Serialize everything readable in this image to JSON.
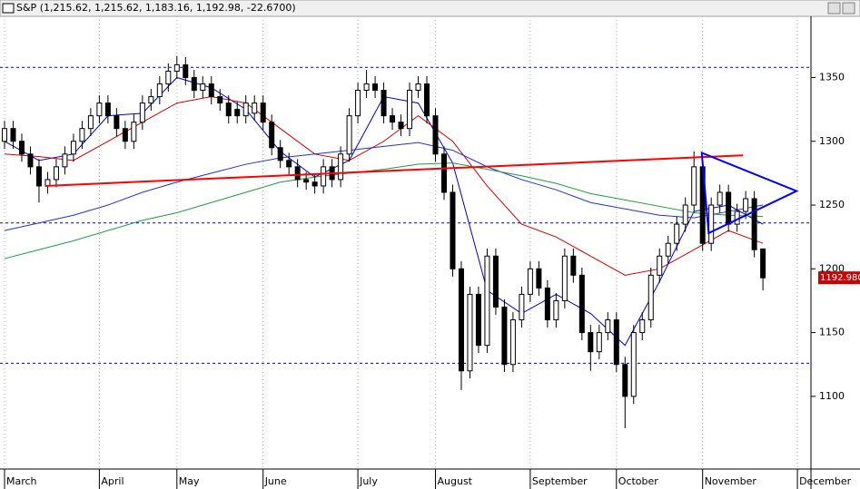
{
  "chart_data": {
    "type": "candlestick",
    "title": "S&P (1,215.62, 1,215.62, 1,183.16, 1,192.98, -22.6700)",
    "categories": [
      "March",
      null,
      null,
      null,
      null,
      null,
      null,
      null,
      null,
      null,
      null,
      "April",
      null,
      null,
      null,
      null,
      null,
      null,
      null,
      null,
      "May",
      null,
      null,
      null,
      null,
      null,
      null,
      null,
      null,
      null,
      "June",
      null,
      null,
      null,
      null,
      null,
      null,
      null,
      null,
      null,
      null,
      "July",
      null,
      null,
      null,
      null,
      null,
      null,
      null,
      null,
      "August",
      null,
      null,
      null,
      null,
      null,
      null,
      null,
      null,
      null,
      null,
      "September",
      null,
      null,
      null,
      null,
      null,
      null,
      null,
      null,
      null,
      "October",
      null,
      null,
      null,
      null,
      null,
      null,
      null,
      null,
      null,
      "November",
      null,
      null,
      null,
      null,
      null,
      null,
      null,
      null,
      null,
      null,
      "December"
    ],
    "open": [
      1300,
      1310,
      1300,
      1290,
      1280,
      1265,
      1270,
      1280,
      1290,
      1300,
      1310,
      1320,
      1330,
      1320,
      1310,
      1300,
      1315,
      1330,
      1335,
      1345,
      1355,
      1360,
      1350,
      1340,
      1345,
      1335,
      1330,
      1325,
      1320,
      1322,
      1330,
      1315,
      1295,
      1285,
      1280,
      1270,
      1268,
      1265,
      1280,
      1270,
      1290,
      1320,
      1340,
      1345,
      1340,
      1320,
      1315,
      1310,
      1340,
      1345,
      1320,
      1290,
      1260,
      1200,
      1120,
      1180,
      1140,
      1210,
      1170,
      1125,
      1160,
      1180,
      1200,
      1185,
      1160,
      1175,
      1210,
      1195,
      1150,
      1135,
      1150,
      1160,
      1125,
      1100,
      1150,
      1160,
      1195,
      1210,
      1220,
      1235,
      1250,
      1280,
      1220,
      1250,
      1260,
      1235,
      1245,
      1255,
      1215.62,
      null,
      null,
      null,
      null
    ],
    "high": [
      1316,
      1316,
      1306,
      1296,
      1286,
      1276,
      1286,
      1296,
      1306,
      1316,
      1326,
      1336,
      1336,
      1326,
      1316,
      1321,
      1336,
      1341,
      1351,
      1361,
      1367,
      1366,
      1356,
      1351,
      1351,
      1341,
      1336,
      1331,
      1336,
      1336,
      1336,
      1321,
      1301,
      1291,
      1286,
      1276,
      1274,
      1286,
      1286,
      1296,
      1326,
      1346,
      1356,
      1351,
      1346,
      1326,
      1321,
      1346,
      1351,
      1351,
      1326,
      1296,
      1266,
      1206,
      1186,
      1186,
      1216,
      1216,
      1176,
      1166,
      1186,
      1206,
      1206,
      1191,
      1181,
      1216,
      1216,
      1201,
      1156,
      1156,
      1166,
      1166,
      1131,
      1156,
      1166,
      1201,
      1216,
      1226,
      1241,
      1256,
      1292,
      1286,
      1256,
      1266,
      1266,
      1251,
      1261,
      1261,
      1215.62,
      null,
      null,
      null,
      null
    ],
    "low": [
      1294,
      1294,
      1284,
      1274,
      1252,
      1259,
      1264,
      1274,
      1284,
      1294,
      1304,
      1314,
      1314,
      1304,
      1294,
      1294,
      1309,
      1324,
      1329,
      1339,
      1349,
      1344,
      1334,
      1334,
      1329,
      1324,
      1314,
      1314,
      1314,
      1316,
      1309,
      1289,
      1279,
      1274,
      1264,
      1262,
      1259,
      1259,
      1264,
      1264,
      1284,
      1314,
      1334,
      1334,
      1314,
      1309,
      1304,
      1304,
      1334,
      1314,
      1284,
      1254,
      1194,
      1105,
      1114,
      1134,
      1134,
      1164,
      1119,
      1119,
      1154,
      1174,
      1179,
      1154,
      1154,
      1169,
      1189,
      1144,
      1120,
      1129,
      1144,
      1119,
      1075,
      1094,
      1144,
      1154,
      1189,
      1204,
      1214,
      1229,
      1244,
      1214,
      1214,
      1244,
      1229,
      1229,
      1239,
      1209,
      1183.16,
      null,
      null,
      null,
      null
    ],
    "close": [
      1310,
      1300,
      1290,
      1280,
      1265,
      1270,
      1280,
      1290,
      1300,
      1310,
      1320,
      1330,
      1320,
      1310,
      1300,
      1315,
      1330,
      1335,
      1345,
      1355,
      1360,
      1350,
      1340,
      1345,
      1335,
      1330,
      1320,
      1320,
      1330,
      1330,
      1315,
      1295,
      1285,
      1280,
      1270,
      1268,
      1265,
      1280,
      1270,
      1290,
      1320,
      1340,
      1345,
      1340,
      1320,
      1315,
      1310,
      1340,
      1345,
      1320,
      1290,
      1260,
      1200,
      1120,
      1180,
      1140,
      1210,
      1170,
      1125,
      1160,
      1180,
      1200,
      1185,
      1160,
      1175,
      1210,
      1195,
      1150,
      1135,
      1150,
      1160,
      1125,
      1100,
      1150,
      1160,
      1195,
      1210,
      1220,
      1235,
      1250,
      1280,
      1220,
      1250,
      1260,
      1235,
      1245,
      1255,
      1215,
      1192.98,
      null,
      null,
      null,
      null
    ],
    "last_label": "1192.980",
    "last_label_color": "#cc0000",
    "up_color": "#ffffff",
    "down_color": "#000000",
    "overlays": [
      {
        "color": "#0000cc",
        "x": [
          0,
          4,
          8,
          12,
          16,
          20,
          24,
          28,
          32,
          36,
          40,
          44,
          48,
          52,
          56,
          60,
          64,
          68,
          72,
          76,
          80,
          84,
          88
        ],
        "values": [
          1300,
          1285,
          1290,
          1320,
          1322,
          1350,
          1342,
          1325,
          1292,
          1272,
          1285,
          1335,
          1330,
          1283,
          1183,
          1165,
          1180,
          1165,
          1140,
          1190,
          1245,
          1250,
          1235
        ]
      },
      {
        "color": "#cc0000",
        "x": [
          0,
          4,
          8,
          12,
          16,
          20,
          24,
          28,
          32,
          36,
          40,
          44,
          48,
          52,
          56,
          60,
          64,
          68,
          72,
          76,
          80,
          84,
          88
        ],
        "values": [
          1290,
          1288,
          1285,
          1300,
          1315,
          1330,
          1335,
          1330,
          1310,
          1290,
          1285,
          1300,
          1320,
          1300,
          1265,
          1235,
          1225,
          1210,
          1195,
          1200,
          1215,
          1230,
          1220
        ]
      },
      {
        "color": "#2233cc",
        "x": [
          0,
          4,
          8,
          12,
          16,
          20,
          24,
          28,
          32,
          36,
          40,
          44,
          48,
          52,
          56,
          60,
          64,
          68,
          72,
          76,
          80,
          84,
          88
        ],
        "values": [
          1230,
          1236,
          1242,
          1250,
          1260,
          1268,
          1275,
          1282,
          1287,
          1290,
          1293,
          1296,
          1299,
          1293,
          1280,
          1270,
          1262,
          1252,
          1247,
          1242,
          1240,
          1245,
          1250
        ]
      },
      {
        "color": "#229944",
        "x": [
          0,
          4,
          8,
          12,
          16,
          20,
          24,
          28,
          32,
          36,
          40,
          44,
          48,
          52,
          56,
          60,
          64,
          68,
          72,
          76,
          80,
          84,
          88
        ],
        "values": [
          1208,
          1215,
          1222,
          1230,
          1238,
          1244,
          1252,
          1260,
          1268,
          1272,
          1275,
          1278,
          1282,
          1283,
          1278,
          1273,
          1267,
          1259,
          1254,
          1249,
          1244,
          1242,
          1241
        ]
      }
    ],
    "hlines": [
      1358,
      1236,
      1126
    ],
    "hline_color": "#0000cc",
    "trendline": {
      "color": "#ff0000",
      "x": [
        4.7,
        85.7
      ],
      "values": [
        1265,
        1289
      ]
    },
    "triangle": {
      "color": "#0000ff",
      "x": [
        80.9,
        91.9,
        81.7
      ],
      "values": [
        1291,
        1261,
        1228
      ]
    },
    "ylim": [
      1043,
      1398
    ],
    "yticks": [
      1100,
      1150,
      1200,
      1250,
      1300,
      1350
    ]
  }
}
